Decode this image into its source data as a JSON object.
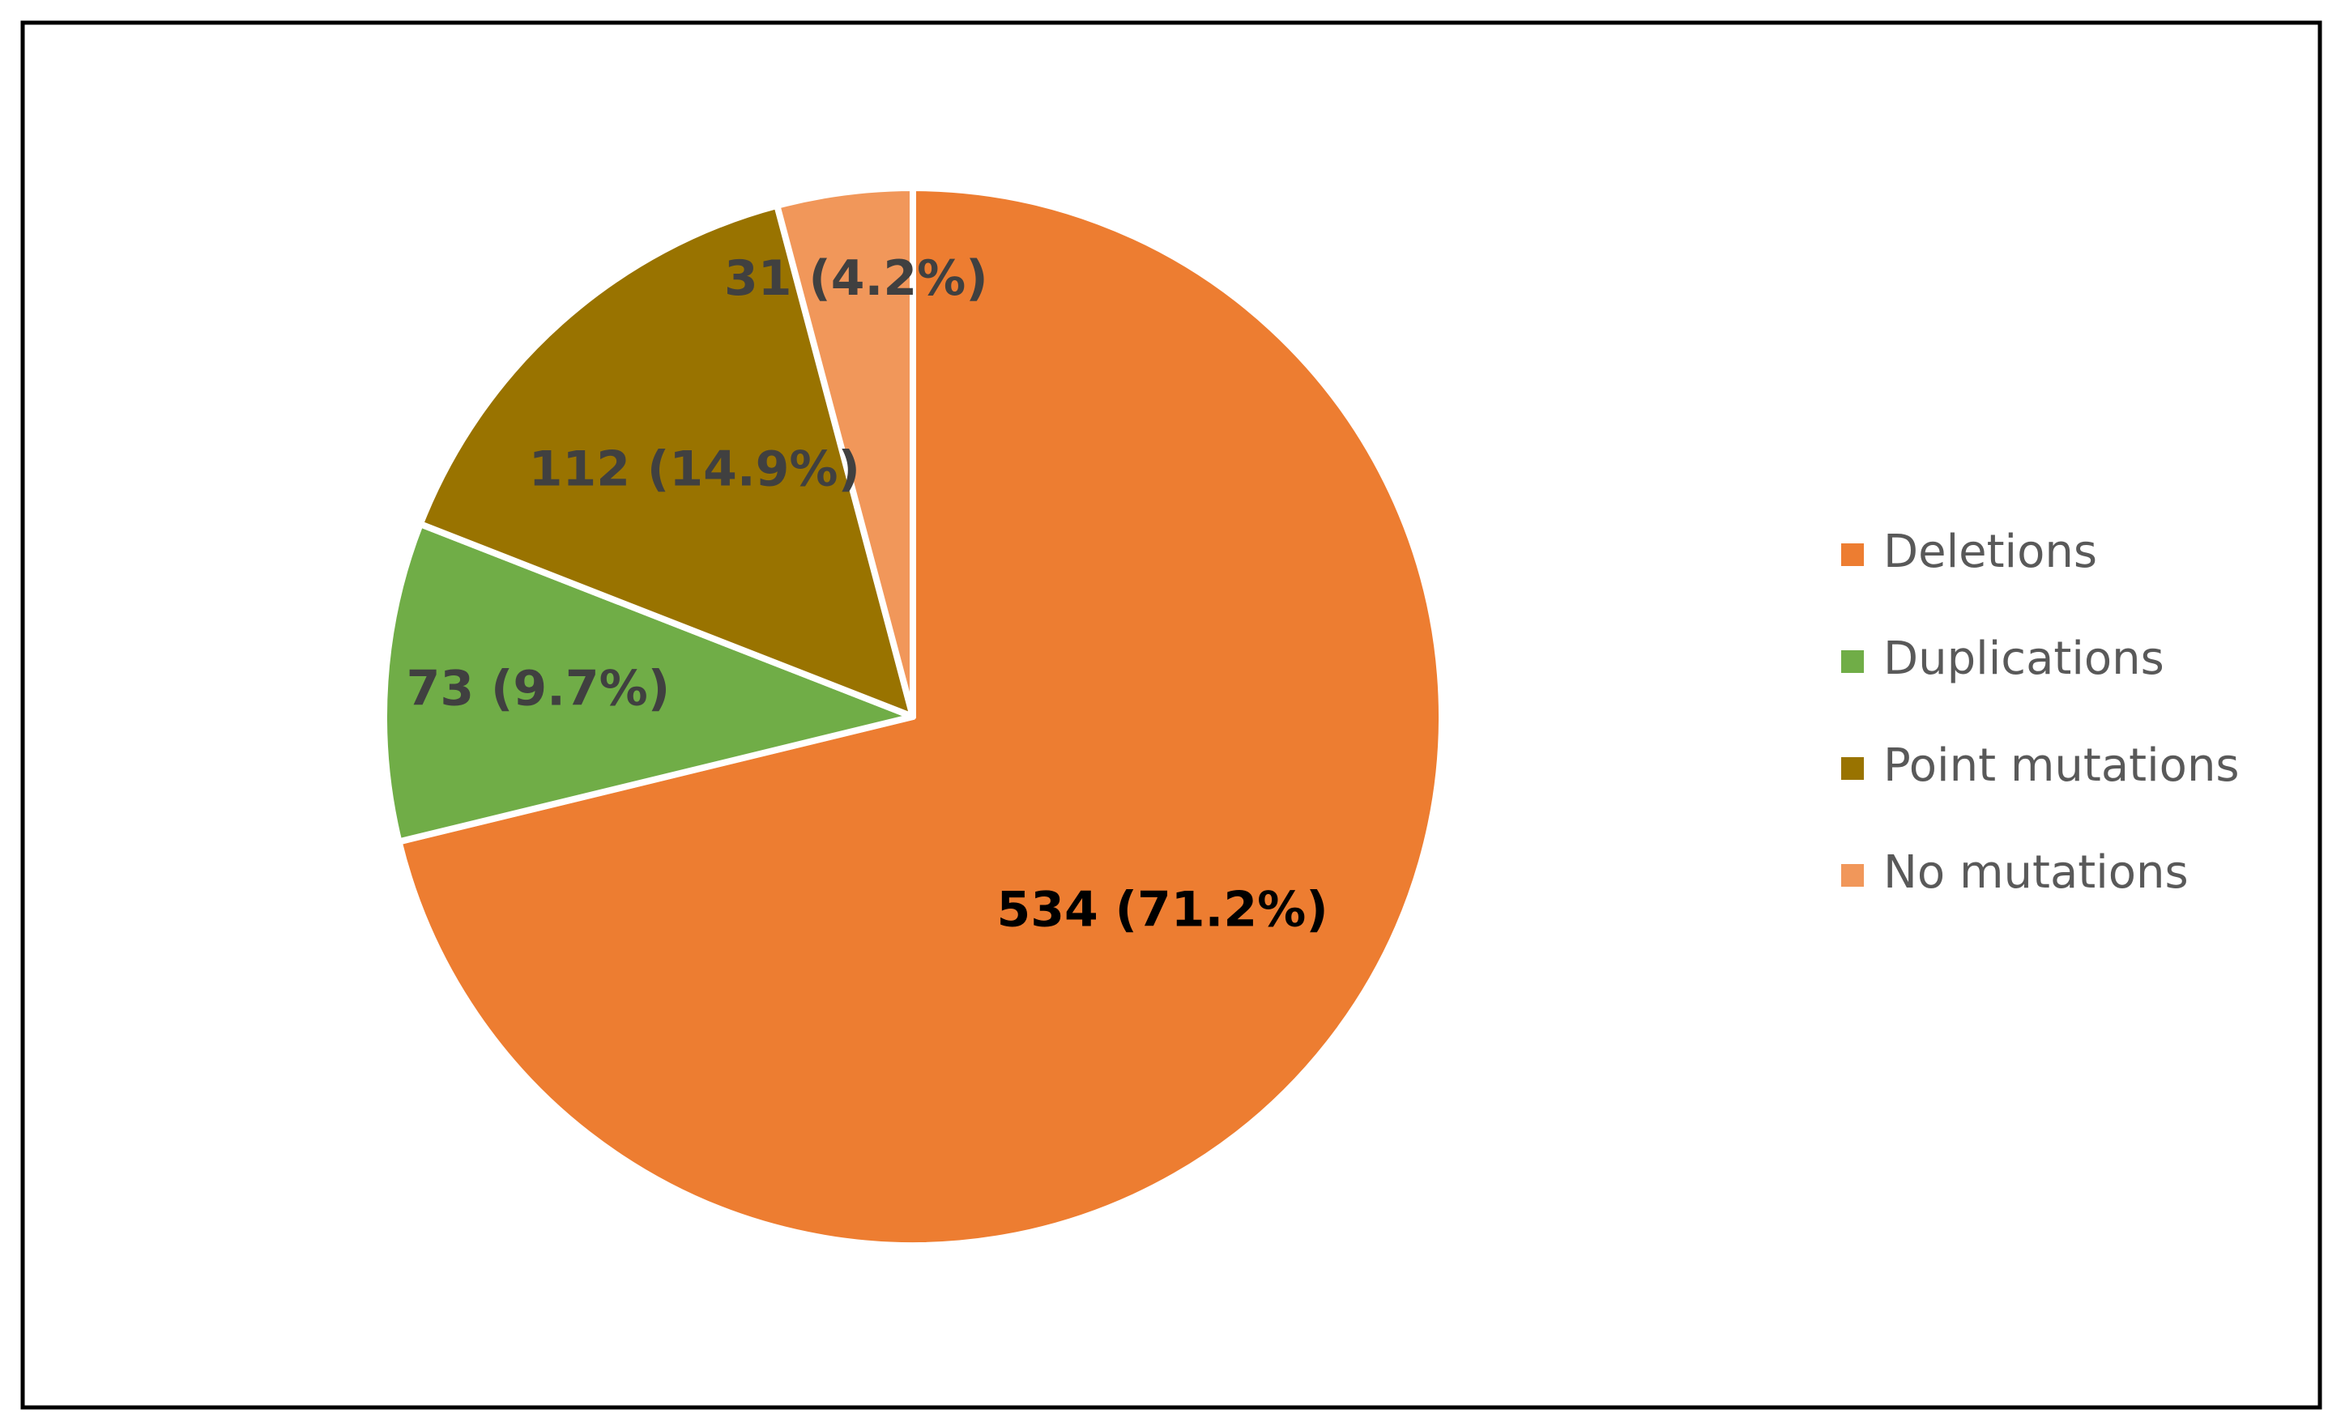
{
  "chart_data": {
    "type": "pie",
    "categories": [
      "Deletions",
      "Duplications",
      "Point mutations",
      "No mutations"
    ],
    "values": [
      534,
      73,
      112,
      31
    ],
    "value_labels": [
      "534 (71.2%)",
      "73 (9.7%)",
      "112 (14.9%)",
      "31 (4.2%)"
    ],
    "colors": [
      "#ED7D31",
      "#70AD47",
      "#997300",
      "#F1975A"
    ],
    "legend": "right"
  }
}
